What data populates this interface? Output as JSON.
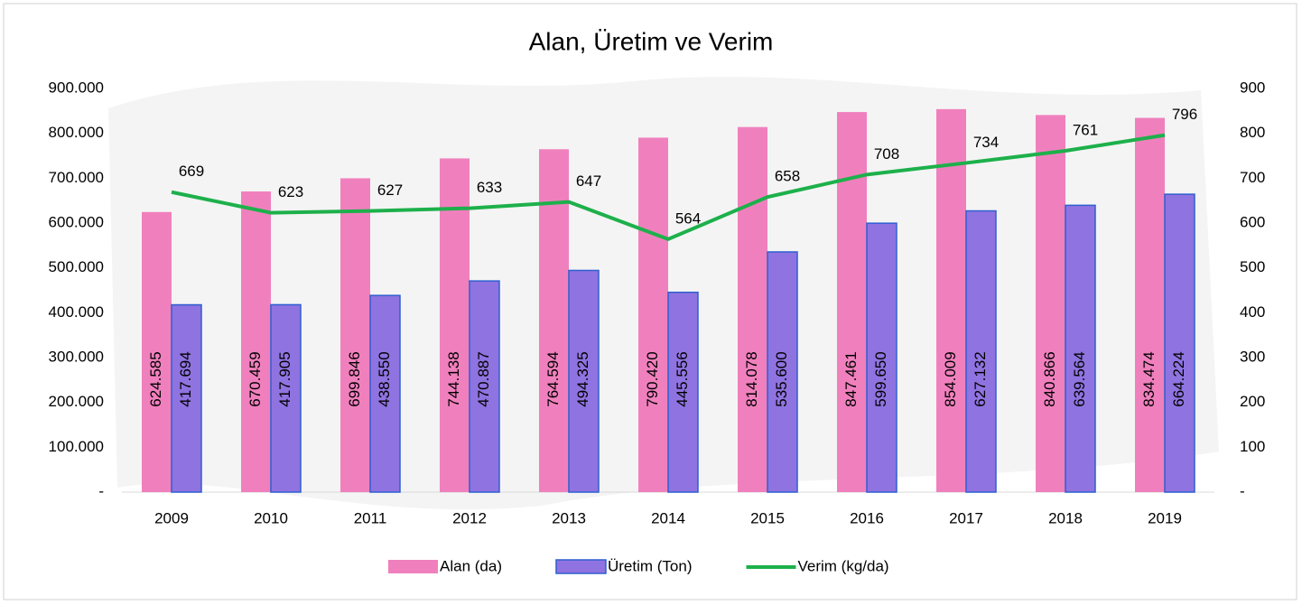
{
  "chart_data": {
    "type": "bar_line",
    "title": "Alan, Üretim ve Verim",
    "categories": [
      "2009",
      "2010",
      "2011",
      "2012",
      "2013",
      "2014",
      "2015",
      "2016",
      "2017",
      "2018",
      "2019"
    ],
    "series": [
      {
        "name": "Alan (da)",
        "type": "bar",
        "color": "#f080bd",
        "values": [
          624585,
          670459,
          699846,
          744138,
          764594,
          790420,
          814078,
          847461,
          854009,
          840866,
          834474
        ],
        "value_labels": [
          "624.585",
          "670.459",
          "699.846",
          "744.138",
          "764.594",
          "790.420",
          "814.078",
          "847.461",
          "854.009",
          "840.866",
          "834.474"
        ]
      },
      {
        "name": "Üretim (Ton)",
        "type": "bar",
        "color": "#8f73e0",
        "border_color": "#2f5fd0",
        "values": [
          417694,
          417905,
          438550,
          470887,
          494325,
          445556,
          535600,
          599650,
          627132,
          639564,
          664224
        ],
        "value_labels": [
          "417.694",
          "417.905",
          "438.550",
          "470.887",
          "494.325",
          "445.556",
          "535.600",
          "599.650",
          "627.132",
          "639.564",
          "664.224"
        ]
      },
      {
        "name": "Verim (kg/da)",
        "type": "line",
        "axis": "y2",
        "color": "#1db04b",
        "values": [
          669,
          623,
          627,
          633,
          647,
          564,
          658,
          708,
          734,
          761,
          796
        ]
      }
    ],
    "ylim": [
      0,
      900000
    ],
    "yticks": [
      {
        "value": 0,
        "label": "-"
      },
      {
        "value": 100000,
        "label": "100.000"
      },
      {
        "value": 200000,
        "label": "200.000"
      },
      {
        "value": 300000,
        "label": "300.000"
      },
      {
        "value": 400000,
        "label": "400.000"
      },
      {
        "value": 500000,
        "label": "500.000"
      },
      {
        "value": 600000,
        "label": "600.000"
      },
      {
        "value": 700000,
        "label": "700.000"
      },
      {
        "value": 800000,
        "label": "800.000"
      },
      {
        "value": 900000,
        "label": "900.000"
      }
    ],
    "y2lim": [
      0,
      900
    ],
    "y2ticks": [
      {
        "value": 0,
        "label": "-"
      },
      100,
      200,
      300,
      400,
      500,
      600,
      700,
      800,
      900
    ],
    "legend": "bottom"
  }
}
